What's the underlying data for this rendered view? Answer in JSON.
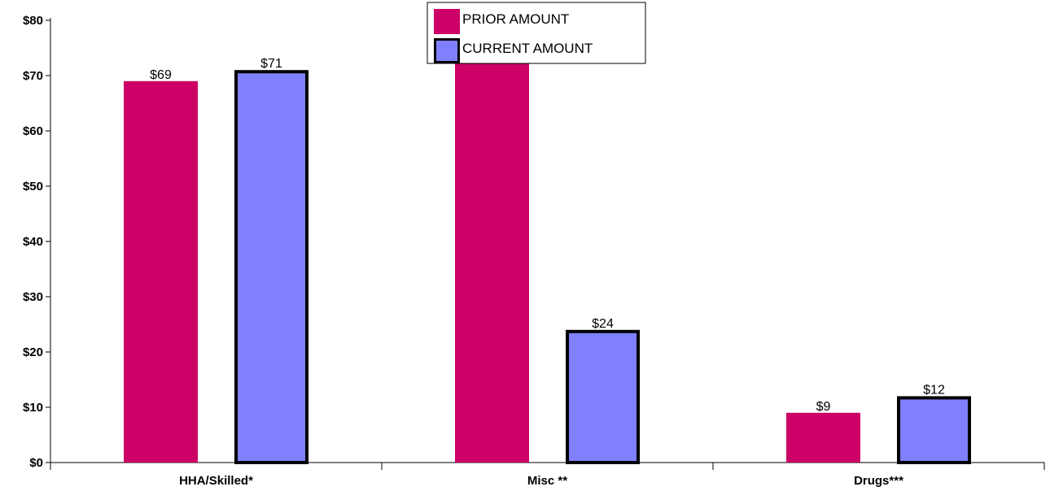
{
  "chart_data": {
    "type": "bar",
    "categories": [
      "HHA/Skilled*",
      "Misc **",
      "Drugs***"
    ],
    "series": [
      {
        "name": "PRIOR AMOUNT",
        "values": [
          69,
          82,
          9
        ],
        "labels": [
          "$69",
          "",
          "$9"
        ],
        "color": "#CC0066"
      },
      {
        "name": "CURRENT AMOUNT",
        "values": [
          71,
          24,
          12
        ],
        "labels": [
          "$71",
          "$24",
          "$12"
        ],
        "color": "#8080FF",
        "border": "#000000"
      }
    ],
    "ylim": [
      0,
      80
    ],
    "yticks": [
      0,
      10,
      20,
      30,
      40,
      50,
      60,
      70,
      80
    ],
    "ytick_labels": [
      "$0",
      "$10",
      "$20",
      "$30",
      "$40",
      "$50",
      "$60",
      "$70",
      "$80"
    ],
    "title": "",
    "xlabel": "",
    "ylabel": "",
    "grid": false,
    "legend_position": "top-center"
  }
}
